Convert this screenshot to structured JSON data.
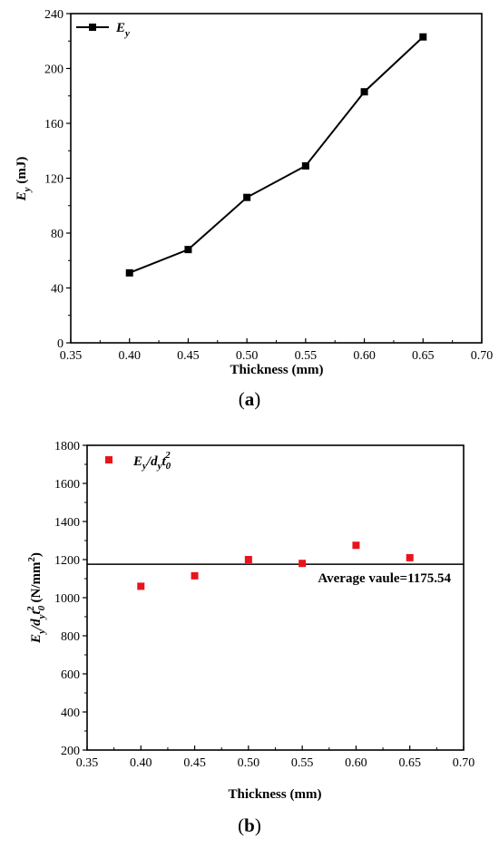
{
  "chart_data": [
    {
      "type": "line",
      "panel_label": "a",
      "xlabel": "Thickness (mm)",
      "ylabel": "E_y (mJ)",
      "xlim": [
        0.35,
        0.7
      ],
      "ylim": [
        0,
        240
      ],
      "xticks": [
        "0.35",
        "0.40",
        "0.45",
        "0.50",
        "0.55",
        "0.60",
        "0.65",
        "0.70"
      ],
      "yticks": [
        "0",
        "40",
        "80",
        "120",
        "160",
        "200",
        "240"
      ],
      "legend_position": "top-left",
      "grid": false,
      "x": [
        0.4,
        0.45,
        0.5,
        0.55,
        0.6,
        0.65
      ],
      "series": [
        {
          "name": "E_y",
          "values": [
            51,
            68,
            106,
            129,
            183,
            223
          ],
          "color": "#000000",
          "marker": "square"
        }
      ]
    },
    {
      "type": "scatter",
      "panel_label": "b",
      "xlabel": "Thickness (mm)",
      "ylabel": "E_y/d_y t_0^2 (N/mm^2)",
      "xlim": [
        0.35,
        0.7
      ],
      "ylim": [
        200,
        1800
      ],
      "xticks": [
        "0.35",
        "0.40",
        "0.45",
        "0.50",
        "0.55",
        "0.60",
        "0.65",
        "0.70"
      ],
      "yticks": [
        "200",
        "400",
        "600",
        "800",
        "1000",
        "1200",
        "1400",
        "1600",
        "1800"
      ],
      "legend_position": "top-left",
      "grid": false,
      "x": [
        0.4,
        0.45,
        0.5,
        0.55,
        0.6,
        0.65
      ],
      "series": [
        {
          "name": "E_y/d_y t_0^2",
          "values": [
            1060,
            1115,
            1200,
            1180,
            1275,
            1210
          ],
          "color": "#e8141c",
          "marker": "square"
        }
      ],
      "reference_line": {
        "y": 1175.54,
        "label": "Average vaule=1175.54",
        "color": "#000000"
      }
    }
  ]
}
